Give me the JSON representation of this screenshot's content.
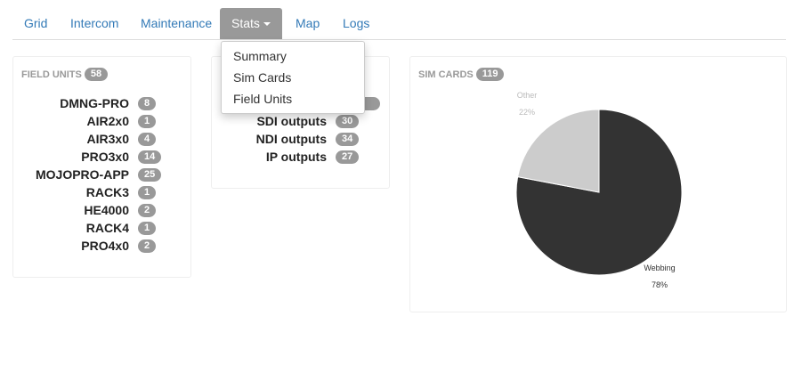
{
  "nav": {
    "tabs": [
      {
        "label": "Grid"
      },
      {
        "label": "Intercom"
      },
      {
        "label": "Maintenance"
      },
      {
        "label": "Stats",
        "active": true
      },
      {
        "label": "Map"
      },
      {
        "label": "Logs"
      }
    ]
  },
  "dropdown": {
    "items": [
      "Summary",
      "Sim Cards",
      "Field Units"
    ]
  },
  "field_units": {
    "title": "FIELD UNITS",
    "count": "58",
    "rows": [
      {
        "label": "DMNG-PRO",
        "count": "8"
      },
      {
        "label": "AIR2x0",
        "count": "1"
      },
      {
        "label": "AIR3x0",
        "count": "4"
      },
      {
        "label": "PRO3x0",
        "count": "14"
      },
      {
        "label": "MOJOPRO-APP",
        "count": "25"
      },
      {
        "label": "RACK3",
        "count": "1"
      },
      {
        "label": "HE4000",
        "count": "2"
      },
      {
        "label": "RACK4",
        "count": "1"
      },
      {
        "label": "PRO4x0",
        "count": "2"
      }
    ]
  },
  "outputs": {
    "rows": [
      {
        "label": "SDI outputs",
        "count": "30"
      },
      {
        "label": "NDI outputs",
        "count": "34"
      },
      {
        "label": "IP outputs",
        "count": "27"
      }
    ]
  },
  "sim_cards": {
    "title": "SIM CARDS",
    "count": "119"
  },
  "chart_data": {
    "type": "pie",
    "slices": [
      {
        "label": "Webbing",
        "percent_label": "78%",
        "value": 78,
        "color": "#333333"
      },
      {
        "label": "Other",
        "percent_label": "22%",
        "value": 22,
        "color": "#cccccc"
      }
    ]
  }
}
